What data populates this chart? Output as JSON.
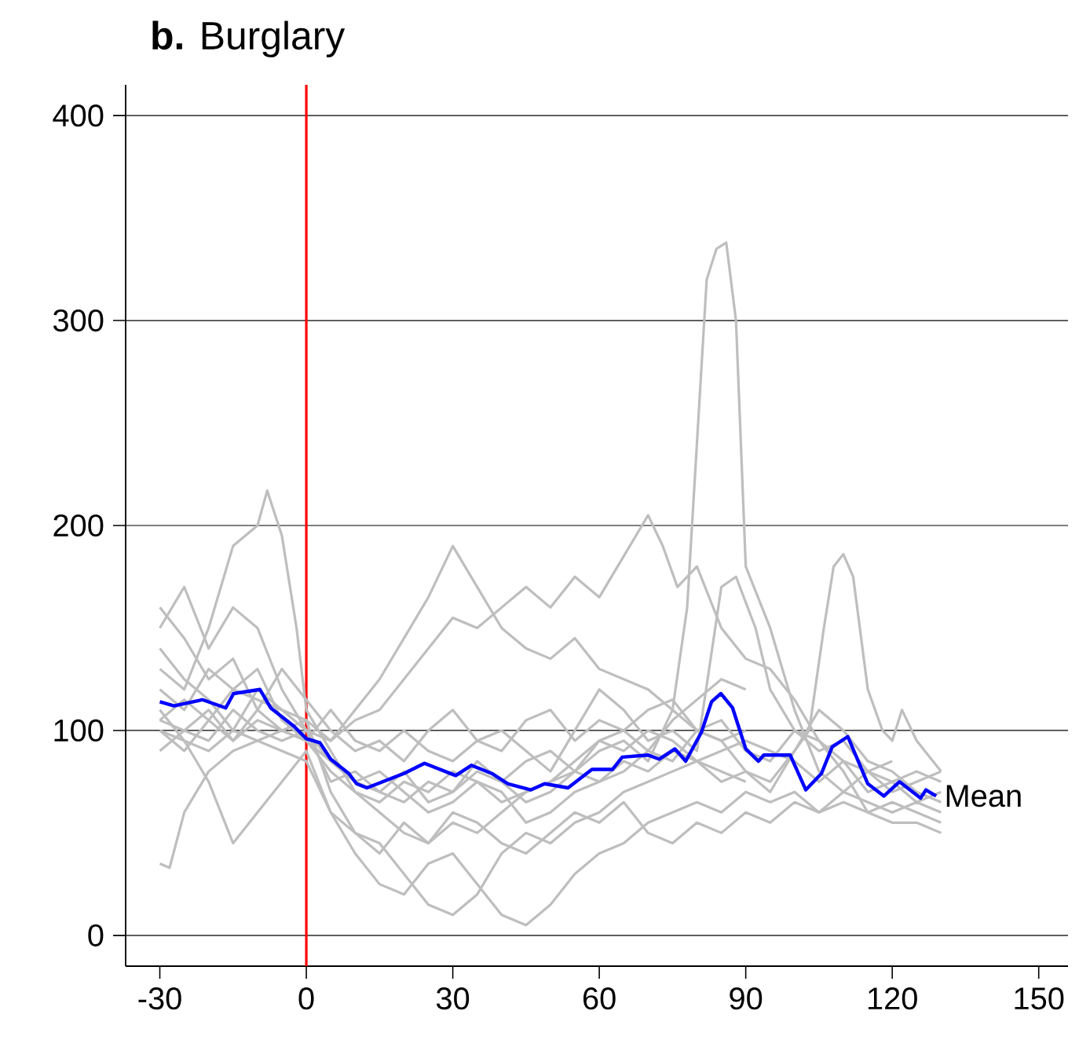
{
  "chart_data": {
    "type": "line",
    "title": "**b.** Burglary",
    "xlim": [
      -37,
      156
    ],
    "ylim": [
      -15,
      415
    ],
    "xticks": [
      -30,
      0,
      30,
      60,
      90,
      120,
      150
    ],
    "yticks": [
      0,
      100,
      200,
      300,
      400
    ],
    "grid": "y",
    "ref_lines": [
      {
        "axis": "x",
        "value": 0,
        "color": "#ff0000"
      }
    ],
    "series": [
      {
        "color": "#bebebe",
        "x": [
          -30,
          -25,
          -20,
          -15,
          -10,
          -5,
          0,
          5,
          10,
          15,
          20,
          25,
          30,
          35,
          40,
          45,
          50,
          55,
          60,
          65,
          70,
          75,
          78,
          80,
          82,
          84,
          86,
          88,
          90,
          95,
          100,
          105,
          110,
          115,
          120,
          125,
          130
        ],
        "values": [
          105,
          100,
          110,
          95,
          105,
          100,
          95,
          80,
          70,
          65,
          75,
          70,
          80,
          75,
          65,
          70,
          75,
          80,
          90,
          95,
          85,
          110,
          160,
          240,
          320,
          335,
          338,
          300,
          180,
          150,
          110,
          80,
          70,
          80,
          75,
          80,
          75
        ]
      },
      {
        "color": "#bebebe",
        "x": [
          -30,
          -25,
          -20,
          -15,
          -10,
          -8,
          -5,
          -2,
          0,
          5,
          10,
          15,
          20,
          25,
          30,
          35,
          40,
          45,
          50,
          55,
          60,
          65,
          70,
          75,
          80,
          85,
          90
        ],
        "values": [
          130,
          120,
          150,
          190,
          200,
          217,
          195,
          150,
          110,
          90,
          70,
          60,
          50,
          45,
          55,
          50,
          60,
          70,
          75,
          85,
          95,
          100,
          90,
          105,
          115,
          125,
          120
        ]
      },
      {
        "color": "#bebebe",
        "x": [
          -30,
          -25,
          -20,
          -15,
          -10,
          -5,
          0,
          5,
          10,
          15,
          20,
          25,
          30,
          35,
          40,
          45,
          50,
          55,
          60,
          65,
          70,
          73,
          76,
          80,
          85,
          90,
          95,
          100,
          105,
          110,
          115,
          120,
          125,
          130
        ],
        "values": [
          90,
          100,
          95,
          110,
          100,
          95,
          100,
          95,
          105,
          110,
          125,
          140,
          155,
          150,
          160,
          170,
          160,
          175,
          165,
          185,
          205,
          190,
          170,
          180,
          150,
          135,
          130,
          115,
          95,
          80,
          60,
          65,
          60,
          55
        ]
      },
      {
        "color": "#bebebe",
        "x": [
          -30,
          -25,
          -20,
          -15,
          -10,
          -5,
          0,
          5,
          10,
          15,
          20,
          25,
          30,
          35,
          40,
          45,
          50,
          55,
          60,
          65,
          70,
          75,
          80,
          85,
          90,
          95,
          100,
          103,
          106,
          108,
          110,
          112,
          115,
          118,
          120,
          122,
          125,
          130
        ],
        "values": [
          100,
          90,
          105,
          95,
          110,
          100,
          95,
          85,
          75,
          70,
          80,
          65,
          70,
          85,
          75,
          65,
          70,
          80,
          75,
          85,
          80,
          90,
          85,
          75,
          80,
          70,
          90,
          100,
          150,
          180,
          186,
          175,
          120,
          100,
          95,
          110,
          95,
          80
        ]
      },
      {
        "color": "#bebebe",
        "x": [
          -30,
          -25,
          -20,
          -15,
          -10,
          -5,
          0,
          5,
          10,
          15,
          20,
          25,
          30,
          35,
          40,
          45,
          50,
          55,
          60,
          65,
          70,
          75,
          80,
          85,
          90
        ],
        "values": [
          120,
          110,
          130,
          120,
          115,
          110,
          105,
          95,
          110,
          125,
          145,
          165,
          190,
          170,
          150,
          140,
          135,
          145,
          130,
          125,
          120,
          110,
          100,
          95,
          100
        ]
      },
      {
        "color": "#bebebe",
        "x": [
          -30,
          -25,
          -20,
          -15,
          -10,
          -5,
          0,
          5,
          10,
          15,
          20,
          25,
          30,
          35,
          40,
          45,
          50,
          55,
          60,
          65,
          70,
          75,
          80,
          85,
          90,
          95,
          100,
          105,
          110,
          115,
          120,
          125,
          130
        ],
        "values": [
          100,
          95,
          90,
          100,
          95,
          90,
          85,
          60,
          40,
          25,
          20,
          35,
          40,
          25,
          10,
          5,
          15,
          30,
          40,
          45,
          55,
          60,
          65,
          60,
          70,
          65,
          70,
          60,
          65,
          60,
          55,
          55,
          50
        ]
      },
      {
        "color": "#bebebe",
        "x": [
          -30,
          -28,
          -25,
          -20,
          -15,
          -10,
          -5,
          0,
          5,
          10,
          15,
          20,
          25,
          30,
          35,
          40,
          45,
          50,
          55,
          60,
          65,
          70,
          75,
          80,
          85,
          90
        ],
        "values": [
          35,
          33,
          60,
          80,
          90,
          95,
          100,
          105,
          70,
          50,
          45,
          30,
          15,
          10,
          20,
          40,
          50,
          45,
          55,
          60,
          70,
          75,
          80,
          85,
          80,
          75
        ]
      },
      {
        "color": "#bebebe",
        "x": [
          -30,
          -25,
          -20,
          -15,
          -10,
          -5,
          0,
          5,
          10,
          15,
          20,
          25,
          30,
          35,
          40,
          45,
          50,
          55,
          60,
          65,
          70,
          75,
          80,
          85,
          90,
          95,
          100,
          105,
          110,
          115,
          120,
          125,
          130
        ],
        "values": [
          150,
          170,
          140,
          160,
          150,
          120,
          100,
          75,
          80,
          70,
          65,
          75,
          70,
          80,
          75,
          85,
          90,
          80,
          95,
          90,
          100,
          95,
          85,
          90,
          95,
          90,
          85,
          75,
          85,
          80,
          70,
          75,
          80
        ]
      },
      {
        "color": "#bebebe",
        "x": [
          -30,
          -25,
          -20,
          -15,
          -10,
          -5,
          0,
          5,
          10,
          15,
          20,
          25,
          30,
          35,
          40,
          45,
          50,
          55,
          60,
          65,
          70,
          75,
          80,
          85,
          90,
          95,
          100,
          105,
          110,
          115,
          120,
          125,
          130
        ],
        "values": [
          110,
          95,
          75,
          45,
          60,
          75,
          90,
          60,
          50,
          40,
          55,
          45,
          60,
          55,
          45,
          40,
          50,
          60,
          55,
          65,
          50,
          45,
          55,
          50,
          60,
          55,
          65,
          60,
          70,
          65,
          60,
          65,
          60
        ]
      },
      {
        "color": "#bebebe",
        "x": [
          -30,
          -25,
          -20,
          -15,
          -10,
          -5,
          0,
          5,
          10,
          15,
          20,
          25,
          30,
          35,
          40,
          45,
          50,
          55,
          60,
          65,
          70,
          75,
          80,
          85,
          90,
          95,
          100,
          105,
          110,
          115,
          120
        ],
        "values": [
          160,
          145,
          125,
          135,
          110,
          130,
          115,
          100,
          90,
          95,
          85,
          100,
          110,
          95,
          90,
          105,
          110,
          95,
          105,
          100,
          110,
          115,
          100,
          105,
          90,
          85,
          100,
          90,
          95,
          80,
          85
        ]
      },
      {
        "color": "#bebebe",
        "x": [
          -30,
          -25,
          -20,
          -15,
          -10,
          -5,
          0,
          5,
          10,
          15,
          20,
          25,
          30,
          35,
          40,
          45,
          50,
          55,
          60,
          65,
          70,
          75,
          80,
          85,
          90,
          95,
          100,
          105,
          110,
          115,
          120,
          125,
          130
        ],
        "values": [
          140,
          125,
          115,
          100,
          120,
          110,
          100,
          85,
          75,
          80,
          70,
          60,
          65,
          75,
          70,
          55,
          60,
          70,
          75,
          80,
          90,
          85,
          100,
          95,
          80,
          75,
          90,
          110,
          100,
          85,
          80,
          70,
          65
        ]
      },
      {
        "color": "#bebebe",
        "x": [
          -30,
          -25,
          -20,
          -15,
          -10,
          -5,
          0,
          5,
          10,
          15,
          20,
          25,
          30,
          35,
          40,
          45,
          50,
          55,
          60,
          65,
          70,
          75,
          80,
          85,
          88,
          92,
          95,
          100,
          105,
          110,
          115,
          120,
          125,
          130
        ],
        "values": [
          105,
          115,
          105,
          120,
          130,
          105,
          95,
          110,
          95,
          90,
          100,
          90,
          85,
          95,
          100,
          90,
          80,
          100,
          120,
          110,
          95,
          100,
          90,
          170,
          175,
          150,
          120,
          100,
          95,
          85,
          70,
          75,
          65,
          70
        ]
      },
      {
        "name": "Mean",
        "color": "#0000ff",
        "x": [
          -30,
          -27.1,
          -21.3,
          -16.5,
          -14.9,
          -9.5,
          -7.3,
          -2.5,
          0,
          2.8,
          5,
          8.7,
          10.3,
          12.4,
          14.6,
          20,
          24.2,
          30.6,
          33.8,
          38,
          41.3,
          46,
          48.8,
          53.6,
          58.5,
          62.7,
          64.7,
          70,
          72.3,
          75.5,
          77.7,
          80.9,
          83,
          84.9,
          87.3,
          90,
          92.6,
          93.7,
          99.1,
          102.3,
          105.5,
          107.7,
          110.9,
          115,
          118.3,
          121.5,
          125.8,
          126.9,
          129
        ],
        "values": [
          114,
          112,
          115,
          111,
          118,
          120,
          111,
          102,
          96,
          94,
          86,
          79,
          74,
          72,
          74,
          79,
          84,
          78,
          83,
          79,
          74,
          71,
          74,
          72,
          81,
          81,
          87,
          88,
          86,
          91,
          85,
          99,
          114,
          118,
          111,
          91,
          85,
          88,
          88,
          71,
          79,
          92,
          97,
          74,
          68,
          75,
          67,
          71,
          68
        ]
      }
    ]
  }
}
